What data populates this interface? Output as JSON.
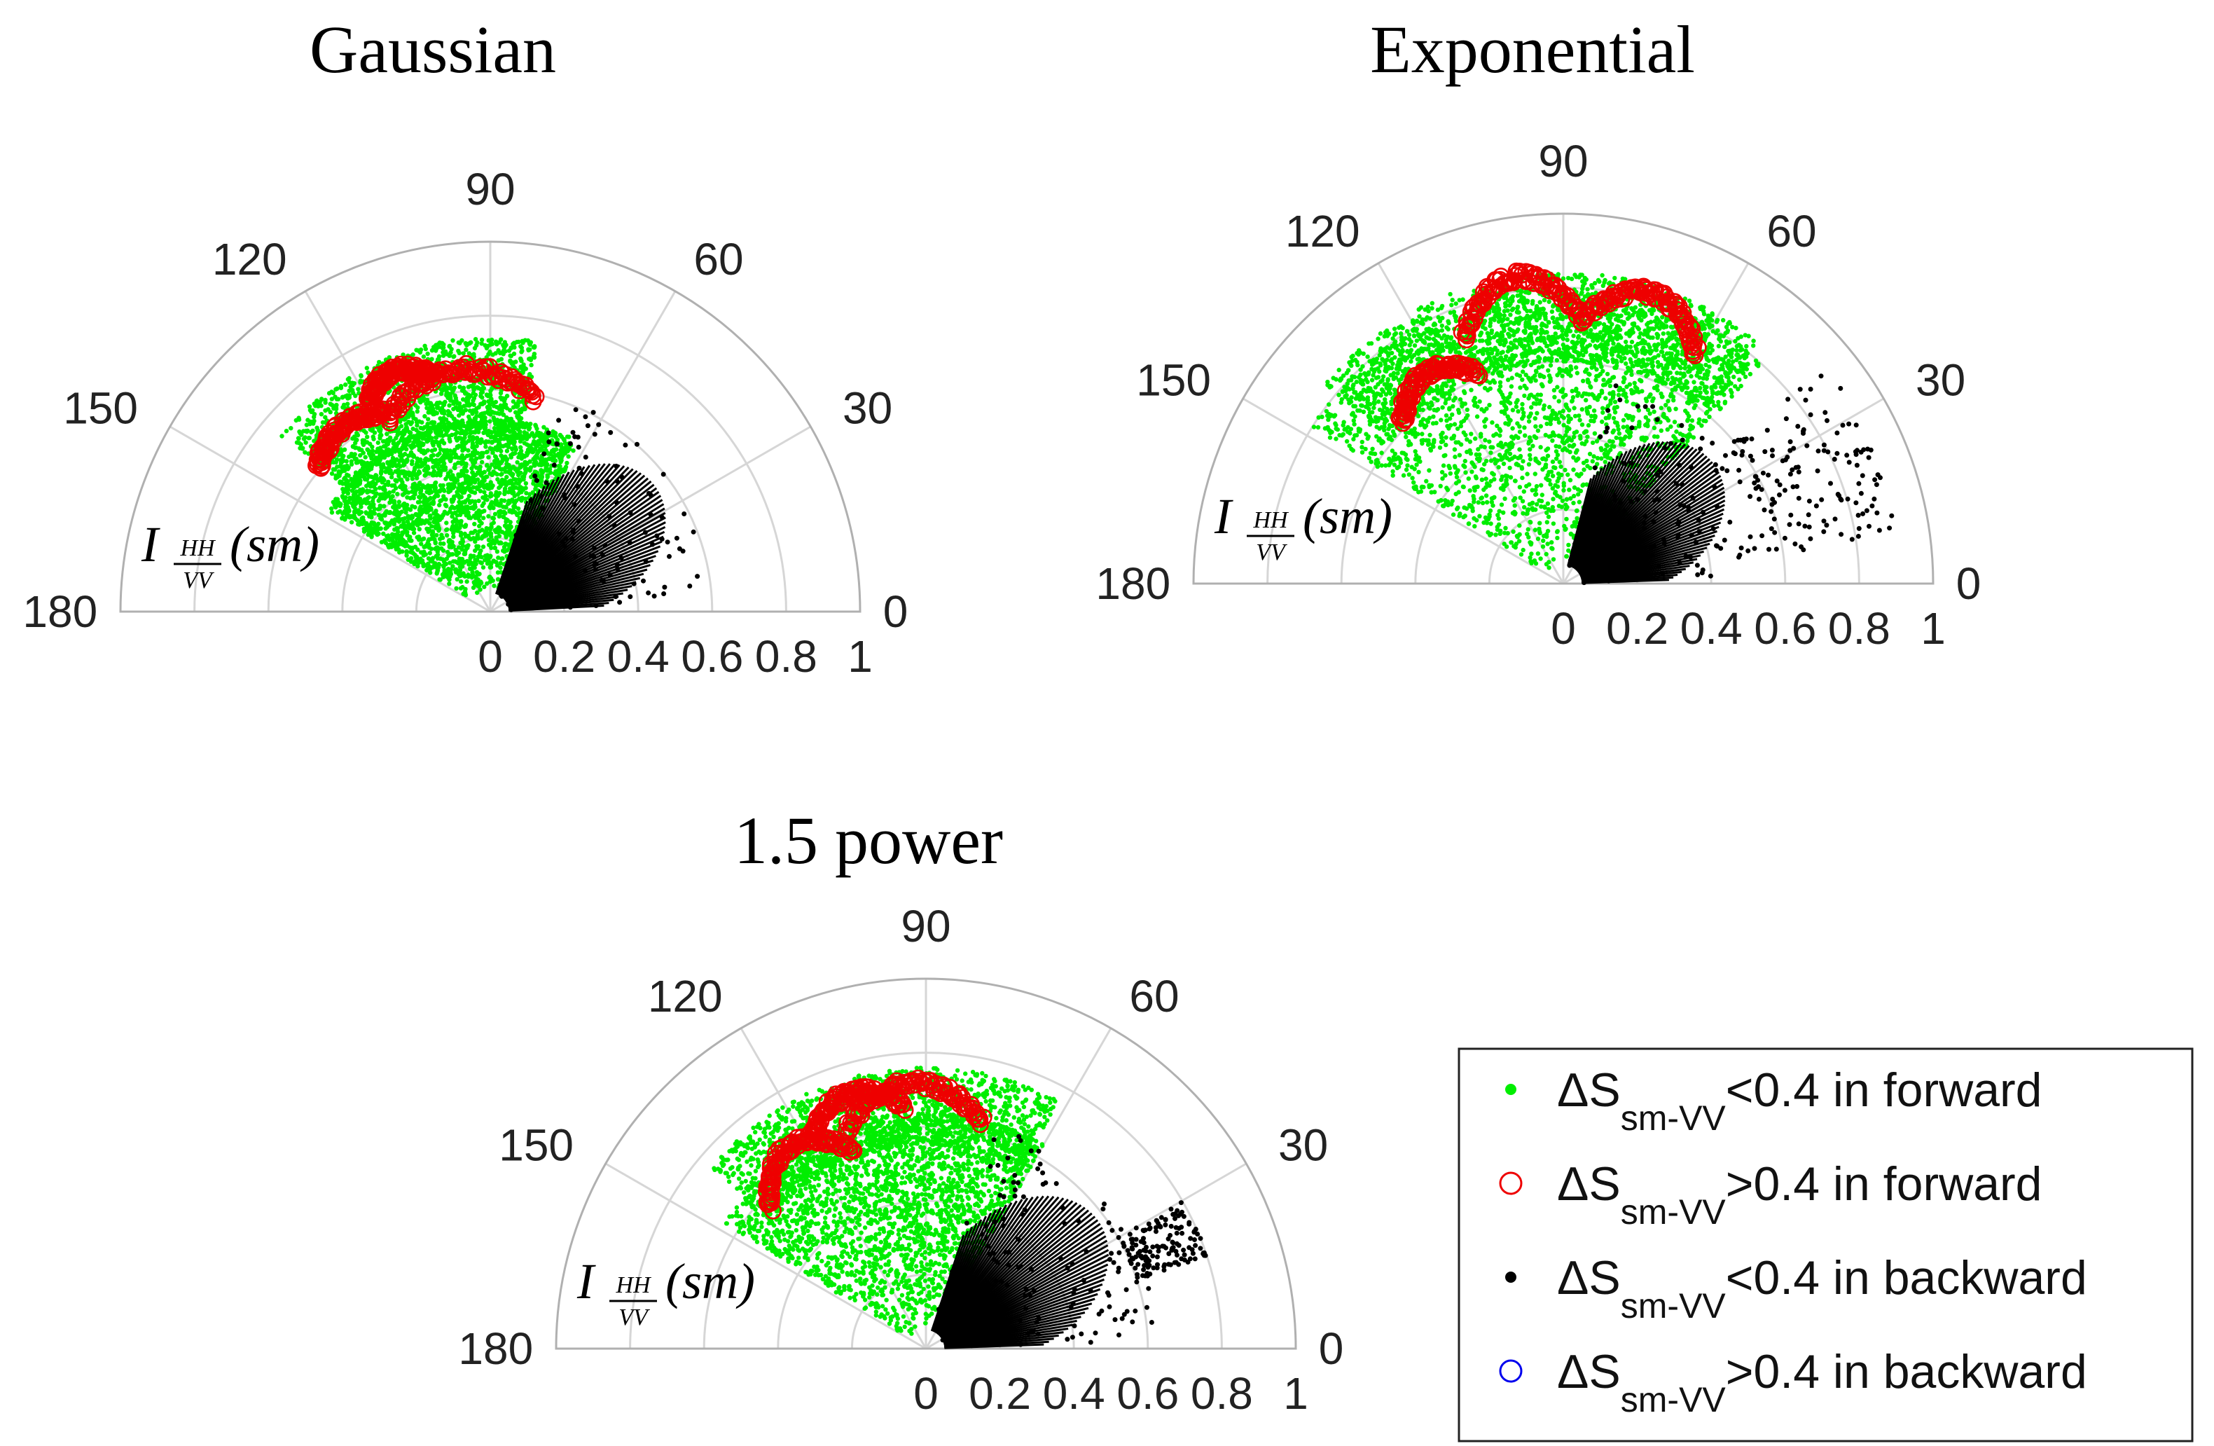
{
  "figure": {
    "legend": {
      "items": [
        {
          "symbol": "dot",
          "color": "#00ee00",
          "prefix": "ΔS",
          "sub": "sm-VV",
          "suffix": "<0.4 in forward"
        },
        {
          "symbol": "ring",
          "color": "#ee0000",
          "prefix": "ΔS",
          "sub": "sm-VV",
          "suffix": ">0.4 in forward"
        },
        {
          "symbol": "dot",
          "color": "#000000",
          "prefix": "ΔS",
          "sub": "sm-VV",
          "suffix": "<0.4 in backward"
        },
        {
          "symbol": "ring",
          "color": "#0000ee",
          "prefix": "ΔS",
          "sub": "sm-VV",
          "suffix": ">0.4 in backward"
        }
      ]
    }
  },
  "chart_data": [
    {
      "type": "scatter",
      "coordinate_system": "polar (upper half)",
      "title": "Gaussian",
      "radial_label": {
        "main": "I",
        "sub_top": "HH",
        "sub_bottom": "VV",
        "suffix": "(sm)"
      },
      "angle_ticks": [
        "0",
        "30",
        "60",
        "90",
        "120",
        "150",
        "180"
      ],
      "radial_ticks": [
        "0",
        "0.2",
        "0.4",
        "0.6",
        "0.8",
        "1"
      ],
      "rlim": [
        0,
        1
      ],
      "thetalim": [
        0,
        180
      ],
      "series": [
        {
          "name": "ΔS sm-VV<0.4 in forward",
          "marker": "dot",
          "color": "#00ee00",
          "regions": [
            {
              "theta": [
                62,
                148
              ],
              "r": [
                0.05,
                0.52
              ]
            }
          ],
          "ridge": {
            "theta": [
              80,
              140
            ],
            "r": [
              0.5,
              0.74
            ]
          }
        },
        {
          "name": "ΔS sm-VV>0.4 in forward",
          "marker": "ring",
          "color": "#ee0000",
          "arcs": [
            {
              "theta": [
                78,
                118
              ],
              "r": [
                0.52,
                0.66
              ]
            },
            {
              "theta": [
                118,
                140
              ],
              "r": [
                0.58,
                0.64
              ]
            },
            {
              "theta": [
                104,
                120
              ],
              "r": [
                0.62,
                0.7
              ]
            }
          ]
        },
        {
          "name": "ΔS sm-VV<0.4 in backward",
          "marker": "dot",
          "color": "#000000",
          "wedge": {
            "theta": [
              3,
              72
            ],
            "r": [
              0.05,
              0.56
            ]
          }
        },
        {
          "name": "ΔS sm-VV>0.4 in backward",
          "marker": "ring",
          "color": "#0000ee",
          "points": []
        }
      ]
    },
    {
      "type": "scatter",
      "coordinate_system": "polar (upper half)",
      "title": "Exponential",
      "radial_label": {
        "main": "I",
        "sub_top": "HH",
        "sub_bottom": "VV",
        "suffix": "(sm)"
      },
      "angle_ticks": [
        "0",
        "30",
        "60",
        "90",
        "120",
        "150",
        "180"
      ],
      "radial_ticks": [
        "0",
        "0.2",
        "0.4",
        "0.6",
        "0.8",
        "1"
      ],
      "rlim": [
        0,
        1
      ],
      "thetalim": [
        0,
        180
      ],
      "series": [
        {
          "name": "ΔS sm-VV<0.4 in forward",
          "marker": "dot",
          "color": "#00ee00",
          "regions": [
            {
              "theta": [
                48,
                148
              ],
              "r": [
                0.05,
                0.8
              ]
            }
          ],
          "ridge": {
            "theta": [
              50,
              140
            ],
            "r": [
              0.6,
              0.84
            ]
          }
        },
        {
          "name": "ΔS sm-VV>0.4 in forward",
          "marker": "ring",
          "color": "#ee0000",
          "arcs": [
            {
              "theta": [
                86,
                112
              ],
              "r": [
                0.6,
                0.84
              ]
            },
            {
              "theta": [
                112,
                135
              ],
              "r": [
                0.55,
                0.68
              ]
            },
            {
              "theta": [
                60,
                86
              ],
              "r": [
                0.62,
                0.82
              ]
            }
          ]
        },
        {
          "name": "ΔS sm-VV<0.4 in backward",
          "marker": "dot",
          "color": "#000000",
          "wedge": {
            "theta": [
              2,
              76
            ],
            "r": [
              0.05,
              0.52
            ]
          },
          "scatter_arcs": [
            {
              "theta": [
                8,
                40
              ],
              "r": [
                0.55,
                0.92
              ]
            }
          ]
        },
        {
          "name": "ΔS sm-VV>0.4 in backward",
          "marker": "ring",
          "color": "#0000ee",
          "points": []
        }
      ]
    },
    {
      "type": "scatter",
      "coordinate_system": "polar (upper half)",
      "title": "1.5 power",
      "radial_label": {
        "main": "I",
        "sub_top": "HH",
        "sub_bottom": "VV",
        "suffix": "(sm)"
      },
      "angle_ticks": [
        "0",
        "30",
        "60",
        "90",
        "120",
        "150",
        "180"
      ],
      "radial_ticks": [
        "0",
        "0.2",
        "0.4",
        "0.6",
        "0.8",
        "1"
      ],
      "rlim": [
        0,
        1
      ],
      "thetalim": [
        0,
        180
      ],
      "series": [
        {
          "name": "ΔS sm-VV<0.4 in forward",
          "marker": "dot",
          "color": "#00ee00",
          "regions": [
            {
              "theta": [
                60,
                148
              ],
              "r": [
                0.05,
                0.64
              ]
            }
          ],
          "ridge": {
            "theta": [
              62,
              140
            ],
            "r": [
              0.55,
              0.76
            ]
          }
        },
        {
          "name": "ΔS sm-VV>0.4 in forward",
          "marker": "ring",
          "color": "#ee0000",
          "arcs": [
            {
              "theta": [
                76,
                110
              ],
              "r": [
                0.54,
                0.72
              ]
            },
            {
              "theta": [
                110,
                138
              ],
              "r": [
                0.48,
                0.66
              ]
            },
            {
              "theta": [
                95,
                118
              ],
              "r": [
                0.6,
                0.72
              ]
            }
          ]
        },
        {
          "name": "ΔS sm-VV<0.4 in backward",
          "marker": "dot",
          "color": "#000000",
          "wedge": {
            "theta": [
              2,
              72
            ],
            "r": [
              0.05,
              0.58
            ]
          },
          "scatter_arcs": [
            {
              "theta": [
                18,
                30
              ],
              "r": [
                0.6,
                0.8
              ]
            }
          ]
        },
        {
          "name": "ΔS sm-VV>0.4 in backward",
          "marker": "ring",
          "color": "#0000ee",
          "points": []
        }
      ]
    }
  ]
}
